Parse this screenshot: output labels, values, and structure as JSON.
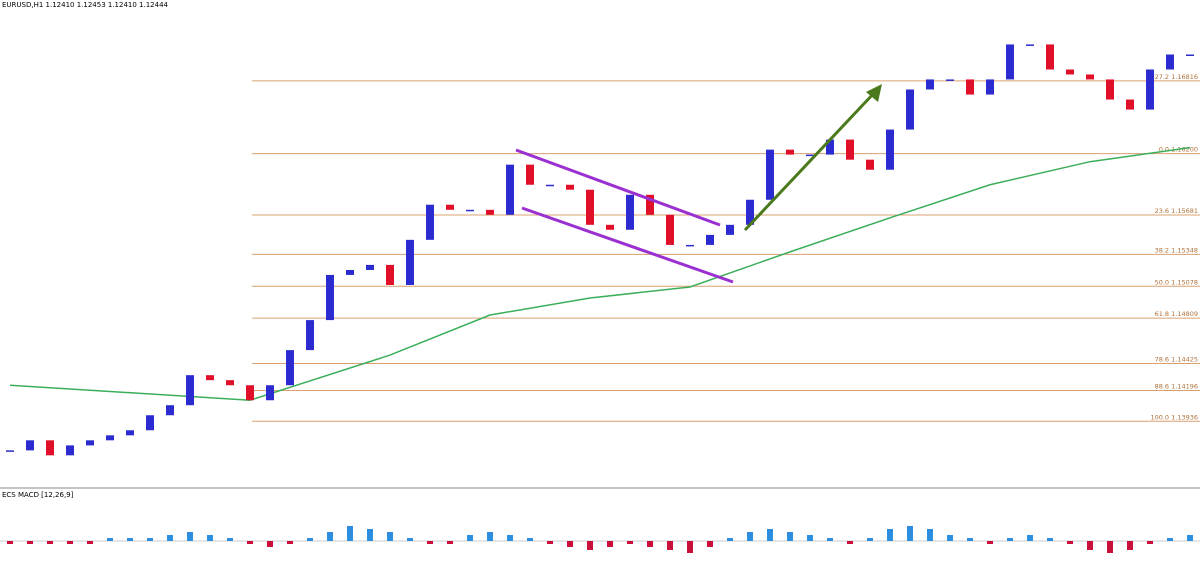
{
  "chart_data": {
    "type": "candlestick",
    "title": "EURUSD,H1  1.12410 1.12453 1.12410 1.12444",
    "closes": [
      1.1369,
      1.13775,
      1.13648,
      1.13732,
      1.13775,
      1.13817,
      1.1386,
      1.13987,
      1.14072,
      1.14326,
      1.14284,
      1.14241,
      1.14114,
      1.14241,
      1.14538,
      1.14792,
      1.15174,
      1.15216,
      1.15259,
      1.15089,
      1.15471,
      1.15768,
      1.15725,
      1.15725,
      1.15683,
      1.16107,
      1.15937,
      1.15937,
      1.15895,
      1.15598,
      1.15556,
      1.15852,
      1.15683,
      1.15428,
      1.15428,
      1.15513,
      1.15598,
      1.1581,
      1.16234,
      1.16192,
      1.16192,
      1.16319,
      1.16149,
      1.16064,
      1.16404,
      1.16743,
      1.16828,
      1.16828,
      1.167,
      1.16828,
      1.17124,
      1.17124,
      1.16912,
      1.1687,
      1.16828,
      1.16658,
      1.16573,
      1.16912,
      1.17039,
      1.17039
    ],
    "up_color": "#2b2bd0",
    "down_color": "#e0102a",
    "ylim": [
      1.1338,
      1.175
    ],
    "moving_average": {
      "color": "#3cae5a",
      "x": [
        0,
        12,
        19,
        24,
        29,
        34,
        39,
        44,
        49,
        54,
        59
      ],
      "values": [
        1.14241,
        1.14114,
        1.14496,
        1.14835,
        1.14979,
        1.15072,
        1.15369,
        1.15657,
        1.15937,
        1.16132,
        1.16251
      ]
    },
    "fib_levels": [
      {
        "value": 1.16816,
        "label": "-27.2 1.16816"
      },
      {
        "value": 1.162,
        "label": "0.0 1.16200"
      },
      {
        "value": 1.15681,
        "label": "23.6 1.15681"
      },
      {
        "value": 1.15348,
        "label": "38.2 1.15348"
      },
      {
        "value": 1.15078,
        "label": "50.0 1.15078"
      },
      {
        "value": 1.14809,
        "label": "61.8 1.14809"
      },
      {
        "value": 1.14425,
        "label": "78.6 1.14425"
      },
      {
        "value": 1.14196,
        "label": "88.6 1.14196"
      },
      {
        "value": 1.13936,
        "label": "100.0 1.13936"
      }
    ],
    "fib_color": "#d9a070",
    "macd": {
      "title": "ECS MACD [12,26,9]",
      "pos_color": "#2d8ee0",
      "neg_color": "#c8103a",
      "histogram": [
        -1,
        -1,
        -1,
        -1,
        -1,
        1,
        1,
        1,
        2,
        3,
        2,
        1,
        -1,
        -2,
        -1,
        1,
        3,
        5,
        4,
        3,
        1,
        -1,
        -1,
        2,
        3,
        2,
        1,
        -1,
        -2,
        -3,
        -2,
        -1,
        -2,
        -3,
        -4,
        -2,
        1,
        3,
        4,
        3,
        2,
        1,
        -1,
        1,
        4,
        5,
        4,
        2,
        1,
        -1,
        1,
        2,
        1,
        -1,
        -3,
        -4,
        -3,
        -1,
        1,
        2
      ]
    }
  }
}
